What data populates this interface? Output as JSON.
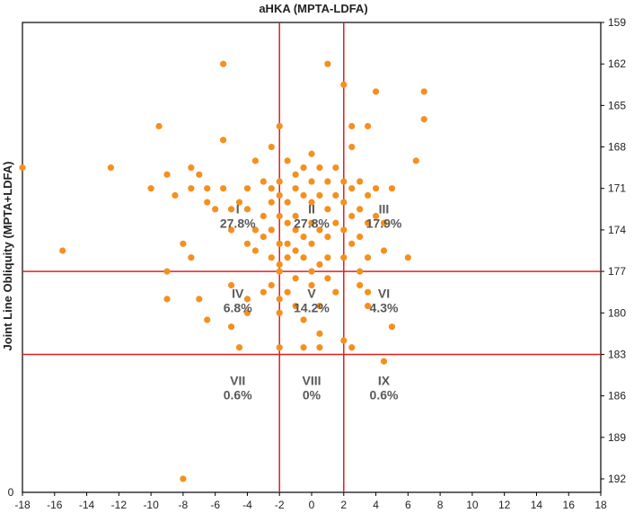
{
  "chart_data": {
    "type": "scatter",
    "title": "aHKA (MPTA-LDFA)",
    "xlabel": "",
    "ylabel": "Joint Line Obliquity (MPTA+LDFA)",
    "xlim": [
      -18,
      18
    ],
    "ylim": [
      159,
      193
    ],
    "x_ticks": [
      "-18",
      "-16",
      "-14",
      "-12",
      "-10",
      "-8",
      "-6",
      "-4",
      "-2",
      "0",
      "2",
      "4",
      "6",
      "8",
      "10",
      "12",
      "14",
      "16",
      "18"
    ],
    "y_ticks": [
      "159",
      "162",
      "165",
      "168",
      "171",
      "174",
      "177",
      "180",
      "183",
      "186",
      "189",
      "192"
    ],
    "y_axis_bottom_label": "0",
    "y_axis_inverted": true,
    "y_axis_position": "right",
    "grid": false,
    "point_color": "#f5901e",
    "line_color": "#e02020",
    "vertical_lines": [
      -2,
      2
    ],
    "horizontal_lines": [
      177,
      183
    ],
    "regions": [
      {
        "roman": "I",
        "percent": "27.8%",
        "x": -4.6,
        "y": 172.8
      },
      {
        "roman": "II",
        "percent": "27.8%",
        "x": 0,
        "y": 172.8
      },
      {
        "roman": "III",
        "percent": "17.9%",
        "x": 4.5,
        "y": 172.8
      },
      {
        "roman": "IV",
        "percent": "6.8%",
        "x": -4.6,
        "y": 178.9
      },
      {
        "roman": "V",
        "percent": "14.2%",
        "x": 0,
        "y": 178.9
      },
      {
        "roman": "VI",
        "percent": "4.3%",
        "x": 4.5,
        "y": 178.9
      },
      {
        "roman": "VII",
        "percent": "0.6%",
        "x": -4.6,
        "y": 185.2
      },
      {
        "roman": "VIII",
        "percent": "0%",
        "x": 0,
        "y": 185.2
      },
      {
        "roman": "IX",
        "percent": "0.6%",
        "x": 4.5,
        "y": 185.2
      }
    ],
    "points": [
      [
        -18,
        169.5
      ],
      [
        -15.5,
        175.5
      ],
      [
        -12.5,
        169.5
      ],
      [
        -10,
        171
      ],
      [
        -9.5,
        166.5
      ],
      [
        -9,
        170
      ],
      [
        -9,
        177
      ],
      [
        -9,
        179
      ],
      [
        -8.5,
        171.5
      ],
      [
        -8,
        175
      ],
      [
        -8,
        192
      ],
      [
        -7.5,
        169.5
      ],
      [
        -7.5,
        171
      ],
      [
        -7.5,
        176
      ],
      [
        -7,
        179
      ],
      [
        -7,
        170
      ],
      [
        -6.5,
        171
      ],
      [
        -6.5,
        180.5
      ],
      [
        -6.5,
        172
      ],
      [
        -6,
        172.5
      ],
      [
        -5.5,
        171
      ],
      [
        -5.5,
        162
      ],
      [
        -5.5,
        167.5
      ],
      [
        -5,
        172.5
      ],
      [
        -5,
        174
      ],
      [
        -5,
        181
      ],
      [
        -5,
        178
      ],
      [
        -4.5,
        182.5
      ],
      [
        -4.5,
        172
      ],
      [
        -4,
        175
      ],
      [
        -4,
        172.5
      ],
      [
        -4,
        171
      ],
      [
        -4,
        180
      ],
      [
        -4,
        179
      ],
      [
        -3.5,
        169
      ],
      [
        -3.5,
        174
      ],
      [
        -3.5,
        175.5
      ],
      [
        -3,
        170.5
      ],
      [
        -3,
        173
      ],
      [
        -3,
        174.5
      ],
      [
        -3,
        178.5
      ],
      [
        -2.5,
        168
      ],
      [
        -2.5,
        171
      ],
      [
        -2.5,
        172
      ],
      [
        -2.5,
        174
      ],
      [
        -2.5,
        176
      ],
      [
        -2.5,
        178
      ],
      [
        -2,
        166.5
      ],
      [
        -2,
        170.5
      ],
      [
        -2,
        171.5
      ],
      [
        -2,
        173
      ],
      [
        -2,
        175
      ],
      [
        -2,
        176.5
      ],
      [
        -2,
        177
      ],
      [
        -2,
        179
      ],
      [
        -2,
        180
      ],
      [
        -2,
        182.5
      ],
      [
        -1.5,
        169
      ],
      [
        -1.5,
        172
      ],
      [
        -1.5,
        173.5
      ],
      [
        -1.5,
        175
      ],
      [
        -1.5,
        176
      ],
      [
        -1.5,
        178.5
      ],
      [
        -1,
        170
      ],
      [
        -1,
        171
      ],
      [
        -1,
        173
      ],
      [
        -1,
        174
      ],
      [
        -1,
        175.5
      ],
      [
        -1,
        177.5
      ],
      [
        -1,
        179.5
      ],
      [
        -0.5,
        169.5
      ],
      [
        -0.5,
        171.5
      ],
      [
        -0.5,
        174.5
      ],
      [
        -0.5,
        176
      ],
      [
        -0.5,
        180.5
      ],
      [
        -0.5,
        182.5
      ],
      [
        0,
        168.5
      ],
      [
        0,
        170.5
      ],
      [
        0,
        172
      ],
      [
        0,
        173.5
      ],
      [
        0,
        175
      ],
      [
        0,
        177
      ],
      [
        0,
        178
      ],
      [
        0.5,
        169.5
      ],
      [
        0.5,
        171.5
      ],
      [
        0.5,
        174
      ],
      [
        0.5,
        176.5
      ],
      [
        0.5,
        179.5
      ],
      [
        0.5,
        181.5
      ],
      [
        0.5,
        182.5
      ],
      [
        1,
        162
      ],
      [
        1,
        170.5
      ],
      [
        1,
        172.5
      ],
      [
        1,
        174.5
      ],
      [
        1,
        176
      ],
      [
        1,
        177.5
      ],
      [
        1.5,
        169.5
      ],
      [
        1.5,
        171.5
      ],
      [
        1.5,
        173.5
      ],
      [
        1.5,
        178.5
      ],
      [
        2,
        163.5
      ],
      [
        2,
        170.5
      ],
      [
        2,
        172
      ],
      [
        2,
        174
      ],
      [
        2,
        176
      ],
      [
        2,
        182
      ],
      [
        2.5,
        166.5
      ],
      [
        2.5,
        168
      ],
      [
        2.5,
        171
      ],
      [
        2.5,
        173
      ],
      [
        2.5,
        175
      ],
      [
        2.5,
        182.5
      ],
      [
        3,
        170.5
      ],
      [
        3,
        172.5
      ],
      [
        3,
        174.5
      ],
      [
        3,
        177
      ],
      [
        3,
        178
      ],
      [
        3.5,
        166.5
      ],
      [
        3.5,
        171.5
      ],
      [
        3.5,
        173.5
      ],
      [
        3.5,
        176
      ],
      [
        3.5,
        178.5
      ],
      [
        3.5,
        179.5
      ],
      [
        4,
        164
      ],
      [
        4,
        171
      ],
      [
        4,
        173
      ],
      [
        4.5,
        173.5
      ],
      [
        4.5,
        175.5
      ],
      [
        4.5,
        183.5
      ],
      [
        5,
        171
      ],
      [
        5,
        181
      ],
      [
        6,
        176
      ],
      [
        6.5,
        169
      ],
      [
        7,
        164
      ],
      [
        7,
        166
      ]
    ]
  }
}
